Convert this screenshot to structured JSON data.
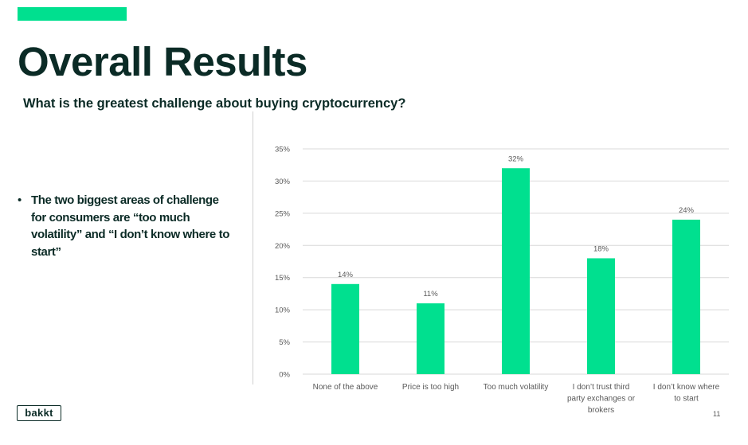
{
  "colors": {
    "accent": "#00e08f",
    "text_dark": "#0b2b26",
    "gridline": "#d9d9d9",
    "axis_text": "#595959"
  },
  "header": {
    "title": "Overall Results",
    "question": "What is the greatest challenge about buying cryptocurrency?"
  },
  "insight": {
    "bullet_symbol": "•",
    "text": "The two biggest areas of challenge for consumers are “too much volatility” and “I don’t know where to start”"
  },
  "footer": {
    "logo_text": "bakkt",
    "page_number": "11"
  },
  "chart_data": {
    "type": "bar",
    "title": "",
    "xlabel": "",
    "ylabel": "",
    "categories": [
      "None of the above",
      "Price is too high",
      "Too much volatility",
      "I don’t trust third party exchanges or brokers",
      "I don’t know where to start"
    ],
    "values": [
      14,
      11,
      32,
      18,
      24
    ],
    "value_labels": [
      "14%",
      "11%",
      "32%",
      "18%",
      "24%"
    ],
    "ylim": [
      0,
      35
    ],
    "yticks": [
      0,
      5,
      10,
      15,
      20,
      25,
      30,
      35
    ],
    "ytick_labels": [
      "0%",
      "5%",
      "10%",
      "15%",
      "20%",
      "25%",
      "30%",
      "35%"
    ],
    "grid": true,
    "legend": "none",
    "bar_color": "#00e08f"
  }
}
